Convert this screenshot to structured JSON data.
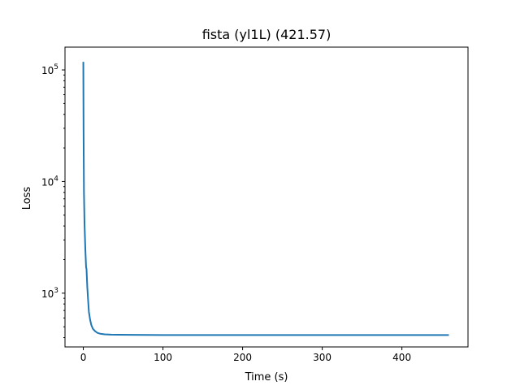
{
  "chart_data": {
    "type": "line",
    "title": "fista (yl1L) (421.57)",
    "xlabel": "Time (s)",
    "ylabel": "Loss",
    "xlim": [
      -23,
      483
    ],
    "ylim": [
      330,
      160000
    ],
    "yscale": "log",
    "grid": false,
    "x_ticks": [
      {
        "value": 0,
        "label": "0"
      },
      {
        "value": 100,
        "label": "100"
      },
      {
        "value": 200,
        "label": "200"
      },
      {
        "value": 300,
        "label": "300"
      },
      {
        "value": 400,
        "label": "400"
      }
    ],
    "y_ticks": [
      {
        "value": 1000,
        "base": "10",
        "exponent": "3"
      },
      {
        "value": 10000,
        "base": "10",
        "exponent": "4"
      },
      {
        "value": 100000,
        "base": "10",
        "exponent": "5"
      }
    ],
    "series": [
      {
        "color": "#1f77b4",
        "x": [
          0,
          0.3,
          0.8,
          1.5,
          2.5,
          3.5,
          4.0,
          5.0,
          6.0,
          7.0,
          8.5,
          10,
          12,
          15,
          18,
          22,
          27,
          35,
          45,
          60,
          100,
          200,
          300,
          400,
          459
        ],
        "y": [
          118000,
          30000,
          8000,
          4200,
          2500,
          1700,
          1650,
          1130,
          870,
          680,
          580,
          520,
          480,
          455,
          440,
          432,
          428,
          425,
          424,
          423,
          422,
          422,
          422,
          421.6,
          421.57
        ]
      }
    ]
  }
}
